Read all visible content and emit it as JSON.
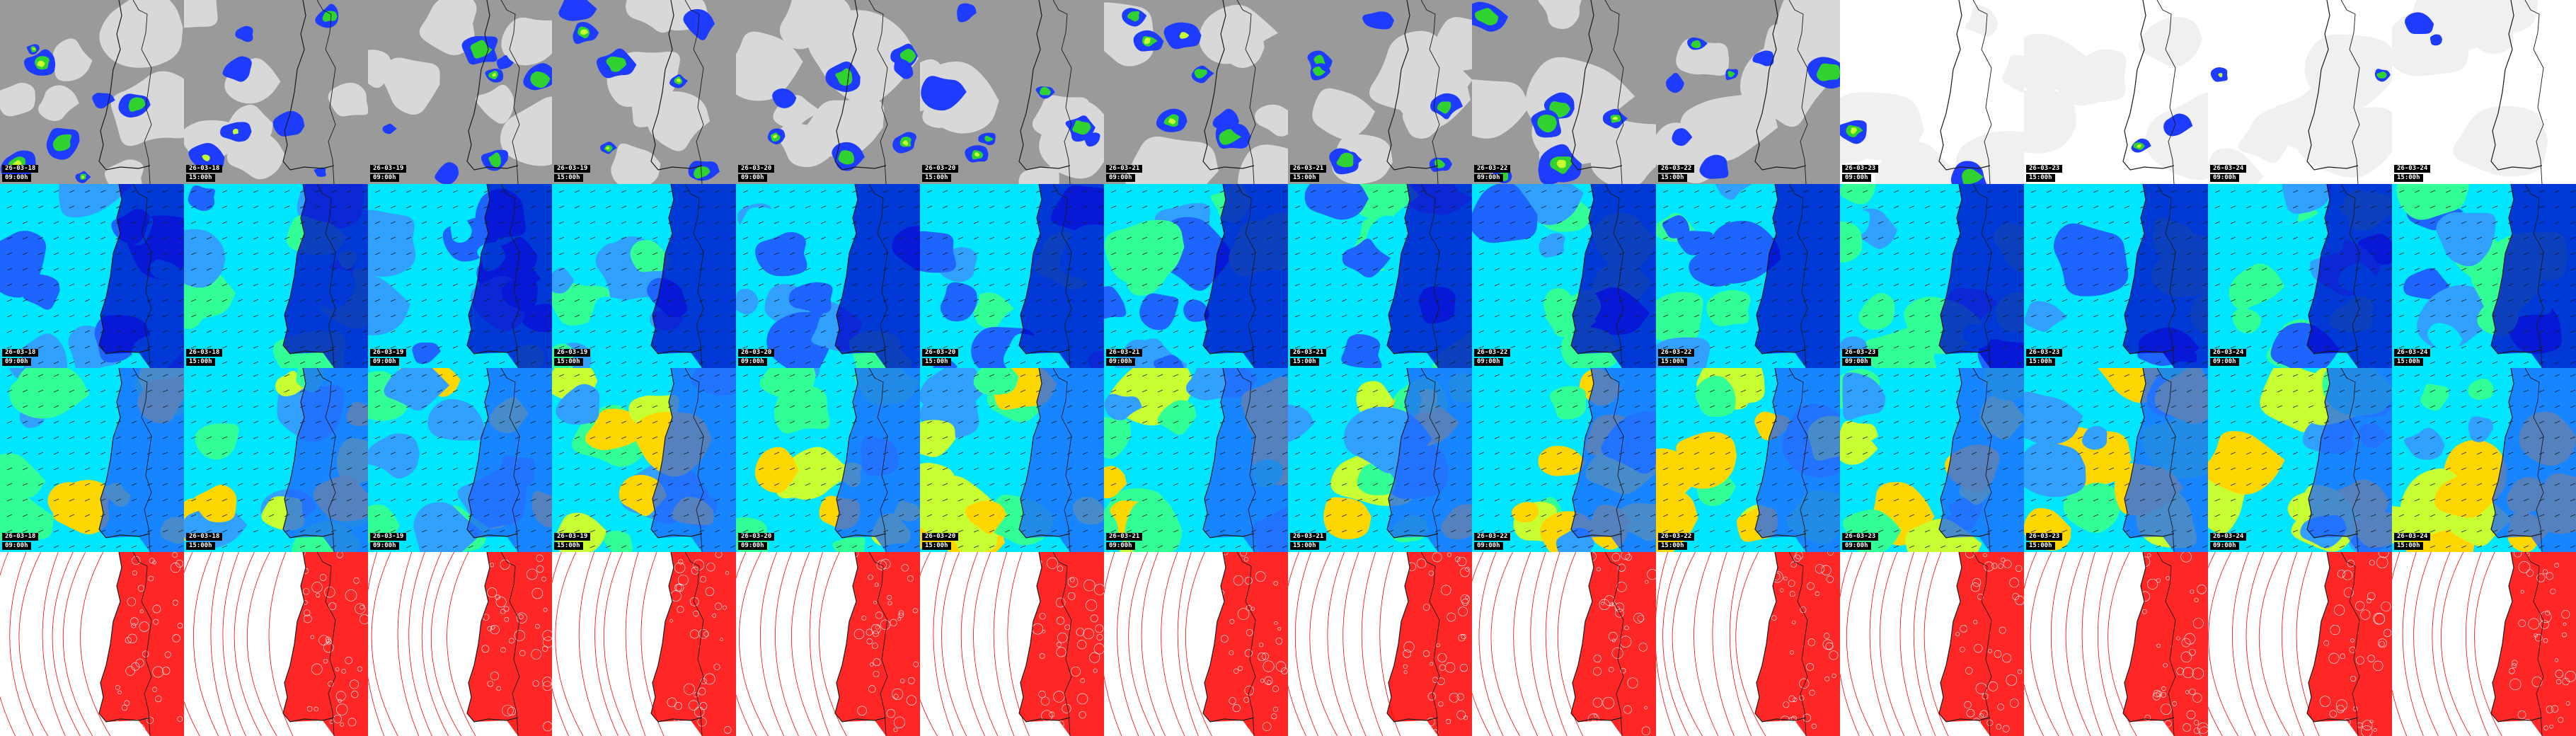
{
  "frames": [
    {
      "date": "26-03-18",
      "time": "09:00h"
    },
    {
      "date": "26-03-18",
      "time": "15:00h"
    },
    {
      "date": "26-03-19",
      "time": "09:00h"
    },
    {
      "date": "26-03-19",
      "time": "15:00h"
    },
    {
      "date": "26-03-20",
      "time": "09:00h"
    },
    {
      "date": "26-03-20",
      "time": "15:00h"
    },
    {
      "date": "26-03-21",
      "time": "09:00h"
    },
    {
      "date": "26-03-21",
      "time": "15:00h"
    },
    {
      "date": "26-03-22",
      "time": "09:00h"
    },
    {
      "date": "26-03-22",
      "time": "15:00h"
    },
    {
      "date": "26-03-23",
      "time": "09:00h"
    },
    {
      "date": "26-03-23",
      "time": "15:00h"
    },
    {
      "date": "26-03-24",
      "time": "09:00h"
    },
    {
      "date": "26-03-24",
      "time": "15:00h"
    }
  ],
  "rows": [
    {
      "key": "precipitation",
      "timestamps": true
    },
    {
      "key": "wind-gusts",
      "timestamps": true
    },
    {
      "key": "wind-mean",
      "timestamps": true
    },
    {
      "key": "pressure-isobars",
      "timestamps": false
    }
  ],
  "colors": {
    "cloud_gray": "#9a9a9a",
    "rain_scale": [
      "#1e3cff",
      "#2e7bff",
      "#2fd22f",
      "#c8ff32"
    ],
    "wind_scale": [
      "#0000c8",
      "#1e64ff",
      "#32a0ff",
      "#00e6ff",
      "#32ff96",
      "#c8ff32",
      "#ffd700",
      "#ff6400"
    ],
    "isobar": "#ff0000",
    "coastline": "#1a1a1a"
  }
}
